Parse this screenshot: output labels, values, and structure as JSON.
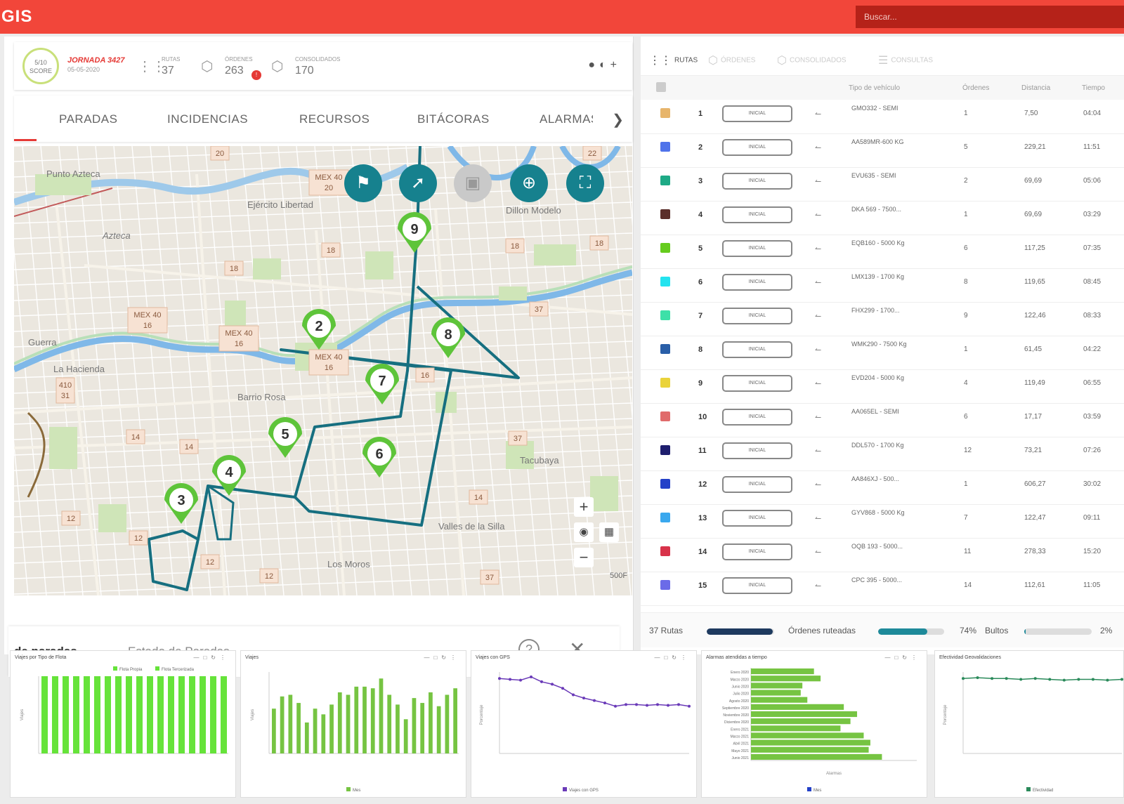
{
  "app": {
    "logo": "GIS",
    "search_placeholder": "Buscar..."
  },
  "jornada": {
    "score": "5/10",
    "score_label": "SCORE",
    "name": "JORNADA 3427",
    "date": "05-05-2020",
    "stats": [
      {
        "label": "RUTAS",
        "value": "37",
        "icon": "routes-icon"
      },
      {
        "label": "ÓRDENES",
        "value": "263",
        "icon": "box-icon",
        "badge": "!"
      },
      {
        "label": "CONSOLIDADOS",
        "value": "170",
        "icon": "boxes-icon"
      }
    ]
  },
  "tabs": [
    "PARADAS",
    "INCIDENCIAS",
    "RECURSOS",
    "BITÁCORAS",
    "ALARMAS"
  ],
  "map": {
    "stops": [
      "9",
      "2",
      "8",
      "7",
      "5",
      "6",
      "4",
      "3"
    ],
    "labels": [
      "Punto Azteca",
      "Azteca",
      "Ejército Libertad",
      "Guerra",
      "La Hacienda",
      "Valles de la Silla",
      "Los Moros",
      "Dillon Modelo",
      "Tacubaya",
      "Barrio Rosa"
    ],
    "road_shields": [
      "20",
      "MEX 40\n20",
      "18",
      "18",
      "18",
      "18",
      "MEX 40\n16",
      "MEX 40\n16",
      "MEX 40\n16",
      "16",
      "37",
      "14",
      "14",
      "14",
      "12",
      "12",
      "12",
      "12",
      "37",
      "37",
      "410\n31",
      "22"
    ],
    "scale": "500F"
  },
  "bottom": {
    "title": "de paradas",
    "subtitle": "Estado de Paradas"
  },
  "right": {
    "tabs": [
      {
        "label": "RUTAS",
        "icon": "routes-icon"
      },
      {
        "label": "ÓRDENES",
        "icon": "box-icon"
      },
      {
        "label": "CONSOLIDADOS",
        "icon": "boxes-icon"
      },
      {
        "label": "CONSULTAS",
        "icon": "list-icon"
      }
    ],
    "headers": [
      "Tipo de vehículo",
      "Órdenes",
      "Distancia",
      "Tiempo"
    ],
    "status_label": "INICIAL",
    "routes": [
      {
        "n": "1",
        "color": "#e7b56b",
        "vehicle": "GMO332 - SEMI",
        "orders": "1",
        "dist": "7,50",
        "time": "04:04"
      },
      {
        "n": "2",
        "color": "#4f73ea",
        "vehicle": "AA589MR-600 KG",
        "orders": "5",
        "dist": "229,21",
        "time": "11:51"
      },
      {
        "n": "3",
        "color": "#1eaa86",
        "vehicle": "EVU635 - SEMI",
        "orders": "2",
        "dist": "69,69",
        "time": "05:06"
      },
      {
        "n": "4",
        "color": "#5a2e2a",
        "vehicle": "DKA 569 - 7500...",
        "orders": "1",
        "dist": "69,69",
        "time": "03:29"
      },
      {
        "n": "5",
        "color": "#66cc1e",
        "vehicle": "EQB160 - 5000 Kg",
        "orders": "6",
        "dist": "117,25",
        "time": "07:35"
      },
      {
        "n": "6",
        "color": "#24e3ef",
        "vehicle": "LMX139 - 1700 Kg",
        "orders": "8",
        "dist": "119,65",
        "time": "08:45"
      },
      {
        "n": "7",
        "color": "#3de0a8",
        "vehicle": "FHX299 - 1700...",
        "orders": "9",
        "dist": "122,46",
        "time": "08:33"
      },
      {
        "n": "8",
        "color": "#2a5fa8",
        "vehicle": "WMK290 - 7500 Kg",
        "orders": "1",
        "dist": "61,45",
        "time": "04:22"
      },
      {
        "n": "9",
        "color": "#ead33a",
        "vehicle": "EVD204 - 5000 Kg",
        "orders": "4",
        "dist": "119,49",
        "time": "06:55"
      },
      {
        "n": "10",
        "color": "#e06b6b",
        "vehicle": "AA065EL - SEMI",
        "orders": "6",
        "dist": "17,17",
        "time": "03:59"
      },
      {
        "n": "11",
        "color": "#1e1e6e",
        "vehicle": "DDL570 - 1700 Kg",
        "orders": "12",
        "dist": "73,21",
        "time": "07:26"
      },
      {
        "n": "12",
        "color": "#2340c8",
        "vehicle": "AA846XJ - 500...",
        "orders": "1",
        "dist": "606,27",
        "time": "30:02"
      },
      {
        "n": "13",
        "color": "#3aa8ee",
        "vehicle": "GYV868 - 5000 Kg",
        "orders": "7",
        "dist": "122,47",
        "time": "09:11"
      },
      {
        "n": "14",
        "color": "#d8324a",
        "vehicle": "OQB 193 - 5000...",
        "orders": "11",
        "dist": "278,33",
        "time": "15:20"
      },
      {
        "n": "15",
        "color": "#6b6be8",
        "vehicle": "CPC 395 - 5000...",
        "orders": "14",
        "dist": "112,61",
        "time": "11:05"
      }
    ],
    "summary": {
      "routes": "37 Rutas",
      "routed": "Órdenes ruteadas",
      "routed_pct": "74%",
      "routed_frac": 0.74,
      "routes_frac": 0.98,
      "packages": "Bultos",
      "packages_pct": "2%",
      "packages_frac": 0.02
    }
  },
  "charts": [
    {
      "title": "Viajes por Tipo de Flota",
      "legend": [
        "Flota Propia",
        "Flota Tercerizada"
      ],
      "ylabel": "Viajes"
    },
    {
      "title": "Viajes",
      "legend": [
        "Mes"
      ],
      "ylabel": "Viajes"
    },
    {
      "title": "Viajes con GPS",
      "legend": [
        "Viajes con GPS"
      ],
      "ylabel": "Porcentaje"
    },
    {
      "title": "Alarmas atendidas a tiempo",
      "legend": [
        "Mes"
      ],
      "xlabel": "Alarmas"
    },
    {
      "title": "Efectividad Geovalidaciones",
      "legend": [
        "Efectividad"
      ],
      "ylabel": "Porcentaje"
    }
  ],
  "chart_data": [
    {
      "type": "bar",
      "title": "Viajes por Tipo de Flota",
      "series": [
        {
          "name": "Flota Propia",
          "values": [
            100,
            100,
            100,
            100,
            100,
            100,
            100,
            100,
            100,
            100,
            100,
            100,
            100,
            100,
            100,
            100,
            100,
            100
          ]
        }
      ],
      "ylim": [
        0,
        100
      ]
    },
    {
      "type": "bar",
      "title": "Viajes",
      "values": [
        55,
        70,
        72,
        62,
        38,
        55,
        48,
        60,
        75,
        72,
        82,
        82,
        80,
        92,
        72,
        60,
        42,
        68,
        62,
        75,
        58,
        72,
        80
      ]
    },
    {
      "type": "line",
      "title": "Viajes con GPS",
      "values": [
        92,
        91,
        90,
        94,
        88,
        85,
        80,
        72,
        68,
        65,
        62,
        58,
        60,
        60,
        59,
        60,
        59,
        60,
        58
      ],
      "ylim": [
        0,
        100
      ]
    },
    {
      "type": "bar",
      "title": "Alarmas atendidas a tiempo",
      "categories": [
        "Enero 2020",
        "Marzo 2020",
        "Junio 2020",
        "Julio 2020",
        "Agosto 2020",
        "Septiembre 2020",
        "Noviembre 2020",
        "Diciembre 2020",
        "Enero 2021",
        "Marzo 2021",
        "Abril 2021",
        "Mayo 2021",
        "Junio 2021"
      ],
      "values": [
        380,
        420,
        310,
        300,
        340,
        560,
        640,
        600,
        540,
        680,
        720,
        710,
        790
      ],
      "xlim": [
        0,
        1000
      ]
    },
    {
      "type": "line",
      "title": "Efectividad Geovalidaciones",
      "values": [
        92,
        93,
        92,
        92,
        91,
        92,
        91,
        90,
        91,
        91,
        90,
        91
      ],
      "ylim": [
        0,
        100
      ]
    }
  ]
}
